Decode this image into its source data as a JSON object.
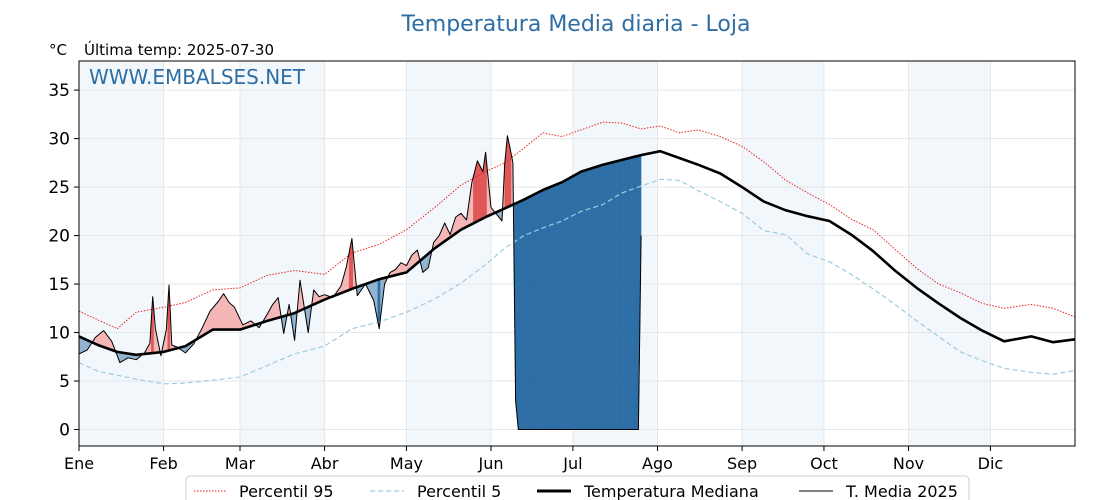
{
  "chart_data": {
    "type": "line",
    "title": "Temperatura Media diaria - Loja",
    "unit_label": "°C",
    "subtitle": "Última temp: 2025-07-30",
    "watermark": "WWW.EMBALSES.NET",
    "x_axis": {
      "tick_labels": [
        "Ene",
        "Feb",
        "Mar",
        "Abr",
        "May",
        "Jun",
        "Jul",
        "Ago",
        "Sep",
        "Oct",
        "Nov",
        "Dic"
      ],
      "month_start_days": [
        1,
        32,
        60,
        91,
        121,
        152,
        182,
        213,
        244,
        274,
        305,
        335
      ],
      "xlim": [
        1,
        366
      ]
    },
    "y_axis": {
      "ticks": [
        0,
        5,
        10,
        15,
        20,
        25,
        30,
        35
      ],
      "ylim": [
        -1.7,
        38
      ]
    },
    "grid": true,
    "legend_position": "bottom-center",
    "colors": {
      "p95": "#e8231f",
      "p5": "#9ecbe0",
      "median": "#000000",
      "actual": "#000000",
      "above_fill": "#f4b6b6",
      "above_fill_strong": "#e05757",
      "below_fill": "#91b3cf",
      "below_fill_strong": "#2d6ea6",
      "month_band": "#f2f7fc",
      "title": "#2f6ea3",
      "watermark": "#2f6ea3"
    },
    "series": [
      {
        "name": "Percentil 95",
        "style": "dotted",
        "points": [
          [
            1,
            12.2
          ],
          [
            8,
            11.3
          ],
          [
            15,
            10.4
          ],
          [
            22,
            12.1
          ],
          [
            32,
            12.6
          ],
          [
            40,
            13.1
          ],
          [
            50,
            14.4
          ],
          [
            60,
            14.6
          ],
          [
            70,
            15.9
          ],
          [
            80,
            16.4
          ],
          [
            91,
            16.0
          ],
          [
            101,
            18.2
          ],
          [
            111,
            19.1
          ],
          [
            121,
            20.6
          ],
          [
            131,
            22.8
          ],
          [
            141,
            25.2
          ],
          [
            150,
            26.6
          ],
          [
            157,
            27.5
          ],
          [
            164,
            29.0
          ],
          [
            171,
            30.6
          ],
          [
            178,
            30.2
          ],
          [
            185,
            30.9
          ],
          [
            193,
            31.7
          ],
          [
            200,
            31.6
          ],
          [
            207,
            31.0
          ],
          [
            214,
            31.3
          ],
          [
            221,
            30.6
          ],
          [
            228,
            30.9
          ],
          [
            236,
            30.2
          ],
          [
            244,
            29.2
          ],
          [
            252,
            27.6
          ],
          [
            260,
            25.7
          ],
          [
            268,
            24.4
          ],
          [
            276,
            23.2
          ],
          [
            284,
            21.7
          ],
          [
            292,
            20.6
          ],
          [
            300,
            18.6
          ],
          [
            308,
            16.6
          ],
          [
            316,
            15.0
          ],
          [
            324,
            14.1
          ],
          [
            332,
            13.0
          ],
          [
            340,
            12.5
          ],
          [
            350,
            12.9
          ],
          [
            358,
            12.5
          ],
          [
            366,
            11.6
          ]
        ]
      },
      {
        "name": "Percentil 5",
        "style": "dashed",
        "points": [
          [
            1,
            6.9
          ],
          [
            8,
            6.0
          ],
          [
            15,
            5.6
          ],
          [
            22,
            5.2
          ],
          [
            32,
            4.7
          ],
          [
            40,
            4.8
          ],
          [
            50,
            5.1
          ],
          [
            60,
            5.4
          ],
          [
            70,
            6.6
          ],
          [
            80,
            7.8
          ],
          [
            91,
            8.6
          ],
          [
            101,
            10.4
          ],
          [
            111,
            11.1
          ],
          [
            121,
            12.1
          ],
          [
            131,
            13.4
          ],
          [
            141,
            15.1
          ],
          [
            150,
            17.0
          ],
          [
            157,
            18.7
          ],
          [
            164,
            20.0
          ],
          [
            171,
            20.8
          ],
          [
            178,
            21.5
          ],
          [
            185,
            22.5
          ],
          [
            193,
            23.2
          ],
          [
            200,
            24.4
          ],
          [
            207,
            25.1
          ],
          [
            214,
            25.8
          ],
          [
            221,
            25.7
          ],
          [
            228,
            24.6
          ],
          [
            236,
            23.5
          ],
          [
            244,
            22.3
          ],
          [
            252,
            20.5
          ],
          [
            260,
            20.1
          ],
          [
            268,
            18.1
          ],
          [
            276,
            17.3
          ],
          [
            284,
            16.0
          ],
          [
            292,
            14.5
          ],
          [
            300,
            12.9
          ],
          [
            308,
            11.2
          ],
          [
            316,
            9.6
          ],
          [
            324,
            8.0
          ],
          [
            332,
            7.1
          ],
          [
            340,
            6.3
          ],
          [
            350,
            5.9
          ],
          [
            358,
            5.7
          ],
          [
            366,
            6.1
          ]
        ]
      },
      {
        "name": "Temperatura Mediana",
        "style": "solid-thick",
        "points": [
          [
            1,
            9.6
          ],
          [
            8,
            8.7
          ],
          [
            15,
            8.0
          ],
          [
            22,
            7.7
          ],
          [
            32,
            8.0
          ],
          [
            40,
            8.6
          ],
          [
            50,
            10.3
          ],
          [
            60,
            10.3
          ],
          [
            70,
            11.2
          ],
          [
            80,
            12.0
          ],
          [
            91,
            13.4
          ],
          [
            101,
            14.5
          ],
          [
            111,
            15.5
          ],
          [
            121,
            16.2
          ],
          [
            131,
            18.6
          ],
          [
            141,
            20.6
          ],
          [
            150,
            21.9
          ],
          [
            157,
            22.8
          ],
          [
            164,
            23.7
          ],
          [
            171,
            24.7
          ],
          [
            178,
            25.5
          ],
          [
            185,
            26.6
          ],
          [
            193,
            27.3
          ],
          [
            200,
            27.8
          ],
          [
            207,
            28.3
          ],
          [
            214,
            28.7
          ],
          [
            221,
            28.0
          ],
          [
            228,
            27.3
          ],
          [
            236,
            26.4
          ],
          [
            244,
            25.0
          ],
          [
            252,
            23.5
          ],
          [
            260,
            22.6
          ],
          [
            268,
            22.0
          ],
          [
            276,
            21.5
          ],
          [
            284,
            20.1
          ],
          [
            292,
            18.4
          ],
          [
            300,
            16.4
          ],
          [
            308,
            14.6
          ],
          [
            316,
            13.0
          ],
          [
            324,
            11.5
          ],
          [
            332,
            10.2
          ],
          [
            340,
            9.1
          ],
          [
            350,
            9.6
          ],
          [
            358,
            9.0
          ],
          [
            366,
            9.3
          ]
        ]
      },
      {
        "name": "T. Media 2025",
        "style": "solid-thin",
        "last_value": 20.0,
        "points": [
          [
            1,
            7.8
          ],
          [
            4,
            8.2
          ],
          [
            7,
            9.5
          ],
          [
            10,
            10.2
          ],
          [
            13,
            9.1
          ],
          [
            16,
            6.9
          ],
          [
            19,
            7.4
          ],
          [
            22,
            7.2
          ],
          [
            25,
            7.9
          ],
          [
            27,
            8.9
          ],
          [
            28,
            13.7
          ],
          [
            29,
            10.4
          ],
          [
            31,
            7.6
          ],
          [
            33,
            10.3
          ],
          [
            34,
            14.9
          ],
          [
            35,
            8.7
          ],
          [
            37,
            8.5
          ],
          [
            40,
            7.9
          ],
          [
            43,
            8.8
          ],
          [
            46,
            10.4
          ],
          [
            49,
            12.2
          ],
          [
            52,
            13.2
          ],
          [
            54,
            14.0
          ],
          [
            56,
            13.1
          ],
          [
            58,
            12.6
          ],
          [
            61,
            10.8
          ],
          [
            64,
            11.2
          ],
          [
            67,
            10.5
          ],
          [
            70,
            11.9
          ],
          [
            72,
            12.9
          ],
          [
            74,
            13.6
          ],
          [
            76,
            9.9
          ],
          [
            78,
            12.9
          ],
          [
            80,
            9.2
          ],
          [
            82,
            15.4
          ],
          [
            85,
            10.0
          ],
          [
            87,
            14.4
          ],
          [
            89,
            13.7
          ],
          [
            91,
            13.9
          ],
          [
            94,
            13.6
          ],
          [
            97,
            14.8
          ],
          [
            99,
            16.8
          ],
          [
            101,
            19.7
          ],
          [
            103,
            13.8
          ],
          [
            106,
            15.0
          ],
          [
            109,
            13.3
          ],
          [
            111,
            10.4
          ],
          [
            113,
            15.0
          ],
          [
            115,
            16.2
          ],
          [
            117,
            16.5
          ],
          [
            119,
            17.2
          ],
          [
            121,
            16.9
          ],
          [
            123,
            18.0
          ],
          [
            125,
            18.5
          ],
          [
            127,
            16.2
          ],
          [
            129,
            16.7
          ],
          [
            131,
            19.3
          ],
          [
            133,
            20.0
          ],
          [
            135,
            21.3
          ],
          [
            137,
            20.1
          ],
          [
            139,
            21.9
          ],
          [
            141,
            22.3
          ],
          [
            143,
            21.6
          ],
          [
            145,
            25.5
          ],
          [
            147,
            27.7
          ],
          [
            149,
            26.6
          ],
          [
            150,
            28.6
          ],
          [
            152,
            22.9
          ],
          [
            154,
            22.2
          ],
          [
            156,
            21.5
          ],
          [
            157,
            27.4
          ],
          [
            158,
            30.3
          ],
          [
            159,
            29.0
          ],
          [
            160,
            27.5
          ],
          [
            161,
            3.0
          ],
          [
            162,
            0.0
          ],
          [
            170,
            0.0
          ],
          [
            180,
            0.0
          ],
          [
            190,
            0.0
          ],
          [
            200,
            0.0
          ],
          [
            206,
            0.0
          ],
          [
            207,
            20.0
          ]
        ]
      }
    ]
  },
  "legend": {
    "items": [
      "Percentil 95",
      "Percentil 5",
      "Temperatura Mediana",
      "T. Media 2025"
    ]
  }
}
